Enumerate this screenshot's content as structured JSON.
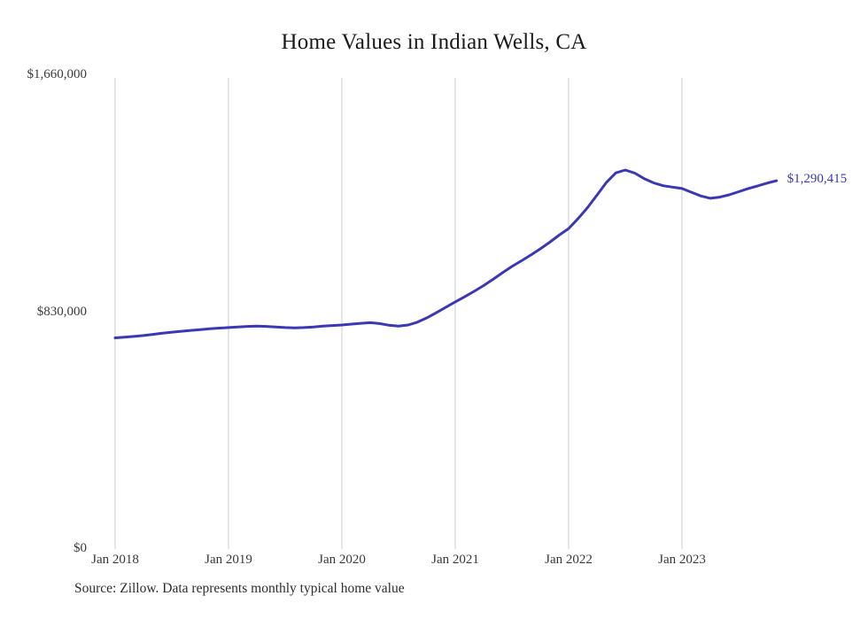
{
  "title": "Home Values in Indian Wells, CA",
  "source_note": "Source: Zillow. Data represents monthly typical home value",
  "colors": {
    "line": "#3a38b2",
    "grid": "#cccccc",
    "title_text": "#1a1a1a",
    "axis_text": "#3a3a3a",
    "background": "#ffffff"
  },
  "chart_data": {
    "type": "line",
    "title": "Home Values in Indian Wells, CA",
    "xlabel": "",
    "ylabel": "",
    "ylim": [
      0,
      1660000
    ],
    "grid": "vertical",
    "legend": "none",
    "yticks": [
      {
        "value": 0,
        "label": "$0"
      },
      {
        "value": 830000,
        "label": "$830,000"
      },
      {
        "value": 1660000,
        "label": "$1,660,000"
      }
    ],
    "xticks": [
      "Jan 2018",
      "Jan 2019",
      "Jan 2020",
      "Jan 2021",
      "Jan 2022",
      "Jan 2023"
    ],
    "end_value_label": "$1,290,415",
    "series": [
      {
        "name": "Typical home value",
        "x": [
          "2018-01",
          "2018-02",
          "2018-03",
          "2018-04",
          "2018-05",
          "2018-06",
          "2018-07",
          "2018-08",
          "2018-09",
          "2018-10",
          "2018-11",
          "2018-12",
          "2019-01",
          "2019-02",
          "2019-03",
          "2019-04",
          "2019-05",
          "2019-06",
          "2019-07",
          "2019-08",
          "2019-09",
          "2019-10",
          "2019-11",
          "2019-12",
          "2020-01",
          "2020-02",
          "2020-03",
          "2020-04",
          "2020-05",
          "2020-06",
          "2020-07",
          "2020-08",
          "2020-09",
          "2020-10",
          "2020-11",
          "2020-12",
          "2021-01",
          "2021-02",
          "2021-03",
          "2021-04",
          "2021-05",
          "2021-06",
          "2021-07",
          "2021-08",
          "2021-09",
          "2021-10",
          "2021-11",
          "2021-12",
          "2022-01",
          "2022-02",
          "2022-03",
          "2022-04",
          "2022-05",
          "2022-06",
          "2022-07",
          "2022-08",
          "2022-09",
          "2022-10",
          "2022-11",
          "2022-12",
          "2023-01",
          "2023-02",
          "2023-03",
          "2023-04",
          "2023-05",
          "2023-06",
          "2023-07",
          "2023-08",
          "2023-09",
          "2023-10",
          "2023-11"
        ],
        "values": [
          740000,
          742500,
          745000,
          748000,
          752000,
          756000,
          760000,
          763000,
          766000,
          769000,
          772000,
          774000,
          776000,
          778000,
          780000,
          781000,
          780000,
          778000,
          776000,
          775000,
          776000,
          778000,
          781000,
          783000,
          785000,
          788000,
          791000,
          793000,
          790000,
          784000,
          781000,
          785000,
          795000,
          810000,
          828000,
          847000,
          866000,
          884000,
          903000,
          923000,
          945000,
          968000,
          990000,
          1010000,
          1030000,
          1052000,
          1075000,
          1100000,
          1123000,
          1158000,
          1196000,
          1240000,
          1285000,
          1318000,
          1328000,
          1317000,
          1298000,
          1283000,
          1273000,
          1268000,
          1263000,
          1250000,
          1237000,
          1229000,
          1233000,
          1241000,
          1252000,
          1263000,
          1272000,
          1282000,
          1290415
        ]
      }
    ]
  }
}
